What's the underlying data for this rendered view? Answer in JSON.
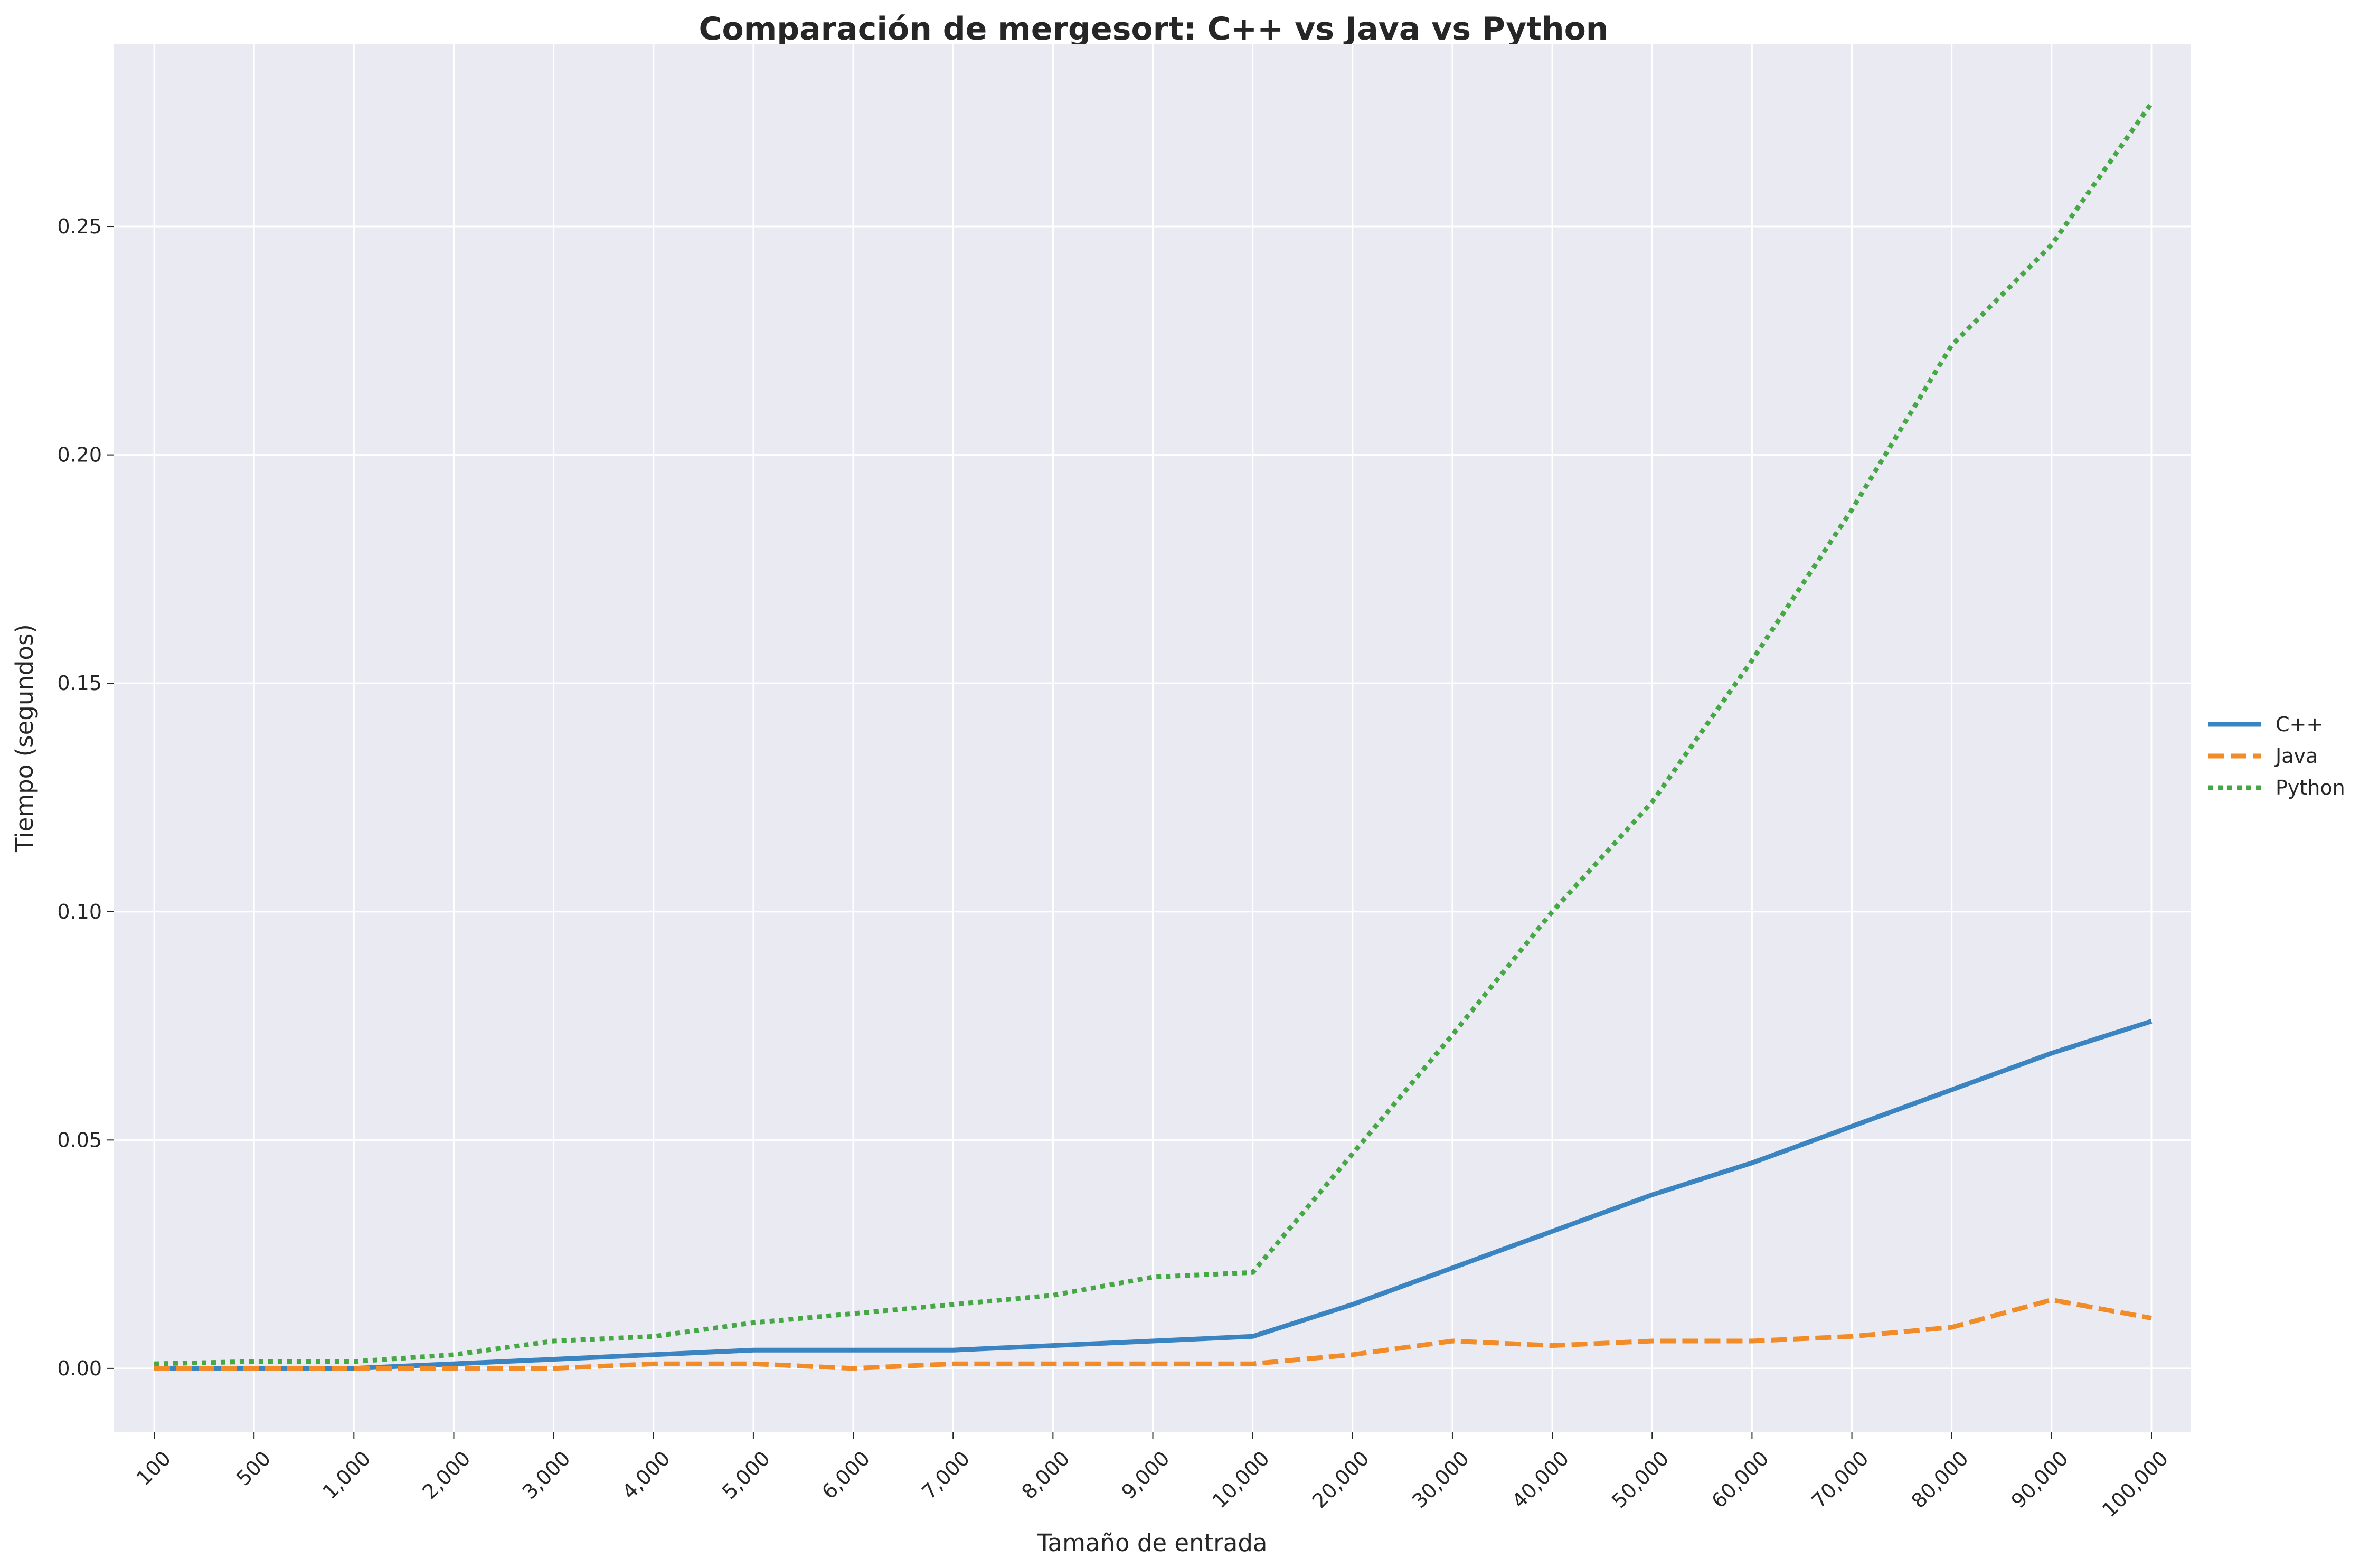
{
  "chart_data": {
    "type": "line",
    "title": "Comparación de mergesort: C++ vs Java vs Python",
    "xlabel": "Tamaño de entrada",
    "ylabel": "Tiempo (segundos)",
    "x_scale": "categorical",
    "categories": [
      "100",
      "500",
      "1,000",
      "2,000",
      "3,000",
      "4,000",
      "5,000",
      "6,000",
      "7,000",
      "8,000",
      "9,000",
      "10,000",
      "20,000",
      "30,000",
      "40,000",
      "50,000",
      "60,000",
      "70,000",
      "80,000",
      "90,000",
      "100,000"
    ],
    "ylim": [
      -0.014,
      0.29
    ],
    "yticks": [
      0.0,
      0.05,
      0.1,
      0.15,
      0.2,
      0.25
    ],
    "ytick_labels": [
      "0.00",
      "0.05",
      "0.10",
      "0.15",
      "0.20",
      "0.25"
    ],
    "grid": true,
    "legend_position": "right",
    "series": [
      {
        "name": "C++",
        "color": "#3a85c1",
        "style": "solid",
        "values": [
          0.0,
          0.0,
          0.0,
          0.001,
          0.002,
          0.003,
          0.004,
          0.004,
          0.004,
          0.005,
          0.006,
          0.007,
          0.014,
          0.022,
          0.03,
          0.038,
          0.045,
          0.053,
          0.061,
          0.069,
          0.076
        ]
      },
      {
        "name": "Java",
        "color": "#f28c28",
        "style": "dashed",
        "values": [
          0.0,
          0.0,
          0.0,
          0.0,
          0.0,
          0.001,
          0.001,
          0.0,
          0.001,
          0.001,
          0.001,
          0.001,
          0.003,
          0.006,
          0.005,
          0.006,
          0.006,
          0.007,
          0.009,
          0.015,
          0.011
        ]
      },
      {
        "name": "Python",
        "color": "#45a845",
        "style": "dotted",
        "values": [
          0.001,
          0.0015,
          0.0015,
          0.003,
          0.006,
          0.007,
          0.01,
          0.012,
          0.014,
          0.016,
          0.02,
          0.021,
          0.047,
          0.073,
          0.1,
          0.124,
          0.155,
          0.188,
          0.224,
          0.246,
          0.277
        ]
      }
    ]
  }
}
